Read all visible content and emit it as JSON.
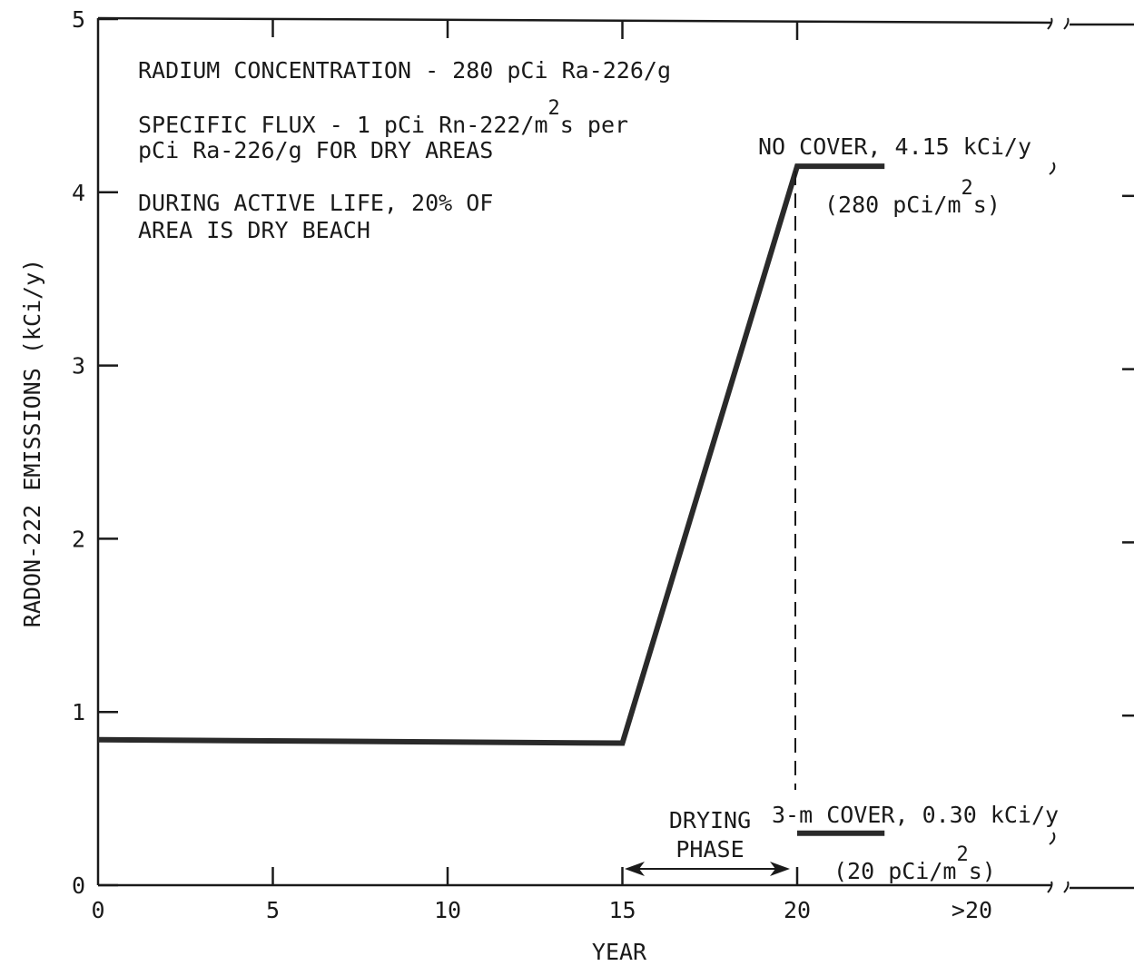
{
  "chart_data": {
    "type": "line",
    "xlabel": "YEAR",
    "ylabel": "RADON-222 EMISSIONS (kCi/y)",
    "ylim": [
      0,
      5
    ],
    "y_ticks": [
      "0",
      "1",
      "2",
      "3",
      "4",
      "5"
    ],
    "x_ticks": [
      "0",
      "5",
      "10",
      "15",
      "20",
      ">20"
    ],
    "series": [
      {
        "x": [
          0,
          15,
          20,
          22.5
        ],
        "y": [
          0.84,
          0.82,
          4.15,
          4.15
        ]
      },
      {
        "x": [
          20,
          22.5
        ],
        "y": [
          0.3,
          0.3
        ]
      }
    ],
    "annotations": {
      "radium": "RADIUM CONCENTRATION - 280 pCi Ra-226/g",
      "flux_a": "SPECIFIC FLUX - 1 pCi Rn-222/m",
      "flux_sup": "2",
      "flux_b": "s per",
      "flux_line2": "pCi Ra-226/g FOR DRY AREAS",
      "active_line1": "DURING ACTIVE LIFE, 20% OF",
      "active_line2": "AREA IS DRY BEACH",
      "no_cover": "NO COVER, 4.15 kCi/y",
      "no_cover_flux_a": "(280 pCi/m",
      "no_cover_flux_sup": "2",
      "no_cover_flux_b": "s)",
      "cover": "3-m COVER, 0.30 kCi/y",
      "cover_flux_a": "(20 pCi/m",
      "cover_flux_sup": "2",
      "cover_flux_b": "s)",
      "drying_line1": "DRYING",
      "drying_line2": "PHASE"
    }
  }
}
